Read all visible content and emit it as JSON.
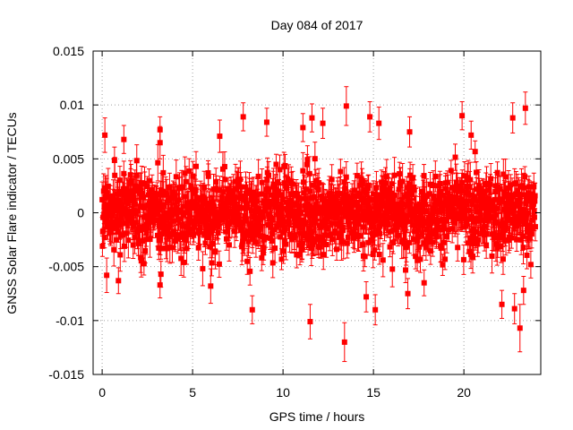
{
  "chart_data": {
    "type": "scatter",
    "title": "Day 084 of 2017",
    "xlabel": "GPS time / hours",
    "ylabel": "GNSS Solar Flare indicator / TECUs",
    "xlim": [
      -0.5,
      24.25
    ],
    "ylim": [
      -0.015,
      0.015
    ],
    "x_ticks": [
      0,
      5,
      10,
      15,
      20
    ],
    "x_tick_labels": [
      "0",
      "5",
      "10",
      "15",
      "20"
    ],
    "y_ticks": [
      -0.015,
      -0.01,
      -0.005,
      0,
      0.005,
      0.01,
      0.015
    ],
    "y_tick_labels": [
      "-0.015",
      "-0.01",
      "-0.005",
      "0",
      "0.005",
      "0.01",
      "0.015"
    ],
    "grid": true,
    "series": [
      {
        "name": "indicator",
        "color": "#ff0000",
        "marker": "square",
        "error_bars": true,
        "x_range": [
          0,
          23.95
        ],
        "typical_range": [
          -0.006,
          0.0065
        ],
        "typical_error": 0.0013,
        "outliers": [
          {
            "x": 0.15,
            "y": 0.0072,
            "err": 0.0016
          },
          {
            "x": 0.25,
            "y": -0.0058,
            "err": 0.0016
          },
          {
            "x": 0.9,
            "y": -0.0063,
            "err": 0.0012
          },
          {
            "x": 1.2,
            "y": 0.0068,
            "err": 0.0013
          },
          {
            "x": 3.2,
            "y": 0.0065,
            "err": 0.0015
          },
          {
            "x": 3.25,
            "y": -0.0057,
            "err": 0.0012
          },
          {
            "x": 3.2,
            "y": 0.0077,
            "err": 0.0012
          },
          {
            "x": 3.2,
            "y": -0.0067,
            "err": 0.0012
          },
          {
            "x": 6.0,
            "y": -0.0068,
            "err": 0.0016
          },
          {
            "x": 6.5,
            "y": 0.0071,
            "err": 0.0015
          },
          {
            "x": 7.8,
            "y": 0.0089,
            "err": 0.0013
          },
          {
            "x": 8.3,
            "y": -0.009,
            "err": 0.0013
          },
          {
            "x": 9.1,
            "y": 0.0084,
            "err": 0.0013
          },
          {
            "x": 11.1,
            "y": 0.0079,
            "err": 0.0013
          },
          {
            "x": 11.5,
            "y": -0.0101,
            "err": 0.0016
          },
          {
            "x": 11.6,
            "y": 0.0088,
            "err": 0.0013
          },
          {
            "x": 12.2,
            "y": 0.0083,
            "err": 0.0014
          },
          {
            "x": 13.4,
            "y": -0.012,
            "err": 0.0018
          },
          {
            "x": 13.5,
            "y": 0.0099,
            "err": 0.0018
          },
          {
            "x": 14.8,
            "y": 0.0089,
            "err": 0.0014
          },
          {
            "x": 15.1,
            "y": -0.009,
            "err": 0.0014
          },
          {
            "x": 14.6,
            "y": -0.0078,
            "err": 0.0014
          },
          {
            "x": 15.3,
            "y": 0.0083,
            "err": 0.0015
          },
          {
            "x": 16.9,
            "y": -0.0075,
            "err": 0.0014
          },
          {
            "x": 17.0,
            "y": 0.0075,
            "err": 0.0014
          },
          {
            "x": 17.8,
            "y": -0.0065,
            "err": 0.0012
          },
          {
            "x": 19.9,
            "y": 0.009,
            "err": 0.0013
          },
          {
            "x": 20.4,
            "y": 0.0072,
            "err": 0.0013
          },
          {
            "x": 22.1,
            "y": -0.0085,
            "err": 0.0013
          },
          {
            "x": 22.7,
            "y": 0.0088,
            "err": 0.0014
          },
          {
            "x": 22.8,
            "y": -0.0089,
            "err": 0.0014
          },
          {
            "x": 23.1,
            "y": -0.0107,
            "err": 0.0022
          },
          {
            "x": 23.4,
            "y": 0.0097,
            "err": 0.0015
          },
          {
            "x": 23.3,
            "y": -0.0072,
            "err": 0.0013
          }
        ]
      }
    ]
  }
}
